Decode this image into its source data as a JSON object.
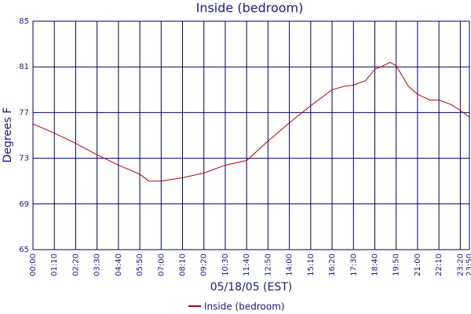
{
  "chart_data": {
    "type": "line",
    "title": "Inside (bedroom)",
    "x_label": "05/18/05 (EST)",
    "y_label": "Degrees F",
    "x": [
      0,
      70,
      140,
      210,
      280,
      350,
      380,
      420,
      490,
      560,
      630,
      700,
      770,
      840,
      910,
      980,
      1020,
      1050,
      1090,
      1120,
      1140,
      1170,
      1190,
      1230,
      1260,
      1300,
      1330,
      1370,
      1400,
      1430
    ],
    "series": [
      {
        "name": "Inside (bedroom)",
        "color": "#aa0000",
        "values": [
          76.0,
          75.2,
          74.3,
          73.3,
          72.4,
          71.6,
          71.0,
          71.0,
          71.3,
          71.7,
          72.4,
          72.8,
          74.5,
          76.1,
          77.6,
          79.0,
          79.3,
          79.4,
          79.8,
          80.8,
          81.0,
          81.4,
          81.1,
          79.3,
          78.6,
          78.1,
          78.1,
          77.7,
          77.2,
          76.6
        ]
      }
    ],
    "xlim": [
      0,
      1430
    ],
    "xticks": [
      {
        "value": 0,
        "label": "00:00"
      },
      {
        "value": 70,
        "label": "01:10"
      },
      {
        "value": 140,
        "label": "02:20"
      },
      {
        "value": 210,
        "label": "03:30"
      },
      {
        "value": 280,
        "label": "04:40"
      },
      {
        "value": 350,
        "label": "05:50"
      },
      {
        "value": 420,
        "label": "07:00"
      },
      {
        "value": 490,
        "label": "08:10"
      },
      {
        "value": 560,
        "label": "09:20"
      },
      {
        "value": 630,
        "label": "10:30"
      },
      {
        "value": 700,
        "label": "11:40"
      },
      {
        "value": 770,
        "label": "12:50"
      },
      {
        "value": 840,
        "label": "14:00"
      },
      {
        "value": 910,
        "label": "15:10"
      },
      {
        "value": 980,
        "label": "16:20"
      },
      {
        "value": 1050,
        "label": "17:30"
      },
      {
        "value": 1120,
        "label": "18:40"
      },
      {
        "value": 1190,
        "label": "19:50"
      },
      {
        "value": 1260,
        "label": "21:00"
      },
      {
        "value": 1330,
        "label": "22:10"
      },
      {
        "value": 1400,
        "label": "23:20"
      },
      {
        "value": 1430,
        "label": "23:50"
      }
    ],
    "ylim": [
      65,
      85
    ],
    "yticks": [
      65,
      69,
      73,
      77,
      81,
      85
    ],
    "grid": true
  }
}
